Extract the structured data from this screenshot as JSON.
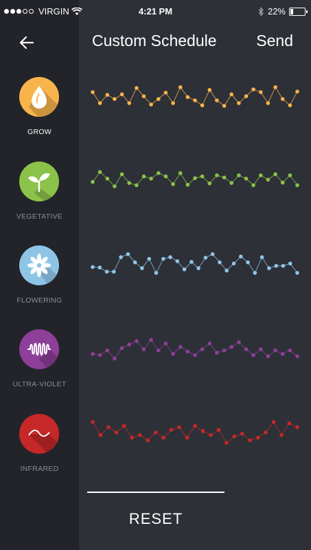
{
  "status_bar": {
    "carrier": "VIRGIN",
    "signal_bars_filled": 3,
    "signal_bars_total": 5,
    "time": "4:21 PM",
    "battery": "22%",
    "battery_level": 0.22
  },
  "header": {
    "title": "Custom Schedule",
    "send_label": "Send",
    "back_icon": "arrow-left-icon"
  },
  "channels": [
    {
      "key": "grow",
      "label": "GROW",
      "icon": "drop-icon",
      "color": "#f8b44b",
      "active": true,
      "values": [
        0.7,
        0.3,
        0.6,
        0.45,
        0.62,
        0.3,
        0.85,
        0.55,
        0.25,
        0.45,
        0.68,
        0.3,
        0.88,
        0.52,
        0.4,
        0.22,
        0.78,
        0.4,
        0.2,
        0.62,
        0.3,
        0.55,
        0.8,
        0.7,
        0.3,
        0.88,
        0.45,
        0.22,
        0.72
      ]
    },
    {
      "key": "vegetative",
      "label": "VEGETATIVE",
      "icon": "sprout-icon",
      "color": "#8bc34a",
      "active": false,
      "values": [
        0.45,
        0.9,
        0.6,
        0.25,
        0.8,
        0.4,
        0.3,
        0.7,
        0.6,
        0.85,
        0.7,
        0.35,
        0.85,
        0.32,
        0.62,
        0.7,
        0.38,
        0.75,
        0.65,
        0.4,
        0.75,
        0.6,
        0.3,
        0.75,
        0.55,
        0.8,
        0.42,
        0.75,
        0.3
      ]
    },
    {
      "key": "flowering",
      "label": "FLOWERING",
      "icon": "flower-icon",
      "color": "#8ec5e6",
      "active": false,
      "values": [
        0.4,
        0.38,
        0.2,
        0.2,
        0.82,
        0.95,
        0.6,
        0.35,
        0.75,
        0.15,
        0.75,
        0.82,
        0.65,
        0.3,
        0.62,
        0.35,
        0.8,
        0.95,
        0.6,
        0.25,
        0.55,
        0.85,
        0.6,
        0.15,
        0.82,
        0.35,
        0.45,
        0.45,
        0.55,
        0.15
      ]
    },
    {
      "key": "ultra-violet",
      "label": "ULTRA-VIOLET",
      "icon": "wave-coil-icon",
      "color": "#8e3f9a",
      "active": false,
      "values": [
        0.3,
        0.25,
        0.45,
        0.1,
        0.55,
        0.7,
        0.85,
        0.5,
        0.9,
        0.45,
        0.75,
        0.3,
        0.6,
        0.4,
        0.25,
        0.5,
        0.75,
        0.35,
        0.45,
        0.6,
        0.8,
        0.5,
        0.25,
        0.5,
        0.2,
        0.45,
        0.3,
        0.45,
        0.2
      ]
    },
    {
      "key": "infrared",
      "label": "INFRARED",
      "icon": "sine-wave-icon",
      "color": "#c62828",
      "active": false,
      "values": [
        0.9,
        0.4,
        0.7,
        0.5,
        0.75,
        0.3,
        0.4,
        0.2,
        0.5,
        0.3,
        0.6,
        0.7,
        0.3,
        0.75,
        0.55,
        0.4,
        0.6,
        0.1,
        0.35,
        0.45,
        0.2,
        0.3,
        0.5,
        0.9,
        0.4,
        0.85,
        0.7
      ]
    }
  ],
  "reset_label": "RESET"
}
